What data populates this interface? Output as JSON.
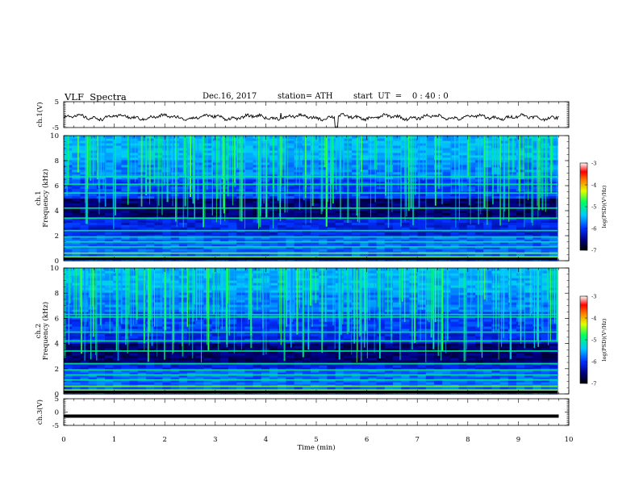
{
  "header": {
    "title": "VLF  Spectra",
    "date": "Dec.16, 2017",
    "station": "station= ATH",
    "start": "start  UT  =    0 : 40 : 0"
  },
  "chart_data": [
    {
      "type": "line",
      "panel": "ch1-waveform",
      "ylabel": "ch.1(V)",
      "ylim": [
        -5,
        5
      ],
      "yticks": [
        "5",
        "-5"
      ],
      "xlim": [
        0,
        10
      ],
      "series": [
        {
          "values_approx": "noisy waveform near -1 V, min spike near 5.4 min"
        }
      ],
      "color": "#000000"
    },
    {
      "type": "heatmap",
      "panel": "ch1-spectrogram",
      "ylabel": "ch.1\nFrequency  (kHz)",
      "ylim": [
        0,
        10
      ],
      "yticks": [
        "0",
        "2",
        "4",
        "6",
        "8",
        "10"
      ],
      "xlim": [
        0,
        9.8
      ],
      "colorbar": {
        "label": "log(PSD)(V²/Hz)",
        "range": [
          -7,
          -3
        ],
        "ticks": [
          "-3",
          "-4",
          "-5",
          "-6",
          "-7"
        ]
      },
      "bands_khz": [
        0.3,
        0.6,
        1.1,
        1.5,
        1.9,
        2.4,
        3.4,
        4.2,
        5.4,
        6.1,
        6.7
      ],
      "quiet_band_khz": [
        3.5,
        5.0
      ]
    },
    {
      "type": "heatmap",
      "panel": "ch2-spectrogram",
      "ylabel": "ch.2\nFrequency  (kHz)",
      "ylim": [
        0,
        10
      ],
      "yticks": [
        "0",
        "2",
        "4",
        "6",
        "8",
        "10"
      ],
      "xlim": [
        0,
        9.8
      ],
      "colorbar": {
        "label": "log(PSD)(V²/Hz)",
        "range": [
          -7,
          -3
        ],
        "ticks": [
          "-3",
          "-4",
          "-5",
          "-6",
          "-7"
        ]
      },
      "bands_khz": [
        0.3,
        0.6,
        1.1,
        1.5,
        1.9,
        2.4,
        3.4,
        4.2,
        4.9,
        6.1,
        6.3
      ],
      "quiet_band_khz": [
        2.5,
        4.0
      ]
    },
    {
      "type": "line",
      "panel": "ch3-waveform",
      "ylabel": "ch.3(V)",
      "ylim": [
        -5,
        5
      ],
      "yticks": [
        "5",
        "0",
        "-5"
      ],
      "xlim": [
        0,
        10
      ],
      "series": [
        {
          "values_approx": "flat thick line near -1.5 V"
        }
      ],
      "color": "#000000"
    }
  ],
  "xaxis": {
    "label": "Time  (min)",
    "ticks": [
      "0",
      "1",
      "2",
      "3",
      "4",
      "5",
      "6",
      "7",
      "8",
      "9",
      "10"
    ]
  }
}
